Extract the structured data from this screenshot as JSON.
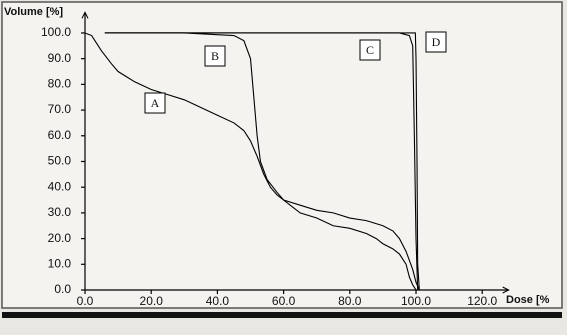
{
  "chart_data": {
    "type": "line",
    "y_label": "Volume [%]",
    "x_label": "Dose [%",
    "xlim": [
      0,
      128
    ],
    "ylim": [
      0,
      108
    ],
    "xticks": [
      {
        "value": 0,
        "label": "0.0"
      },
      {
        "value": 20,
        "label": "20.0"
      },
      {
        "value": 40,
        "label": "40.0"
      },
      {
        "value": 60,
        "label": "60.0"
      },
      {
        "value": 80,
        "label": "80.0"
      },
      {
        "value": 100,
        "label": "100.0"
      },
      {
        "value": 120,
        "label": "120.0"
      }
    ],
    "yticks": [
      {
        "value": 0,
        "label": "0.0"
      },
      {
        "value": 10,
        "label": "10.0"
      },
      {
        "value": 20,
        "label": "20.0"
      },
      {
        "value": 30,
        "label": "30.0"
      },
      {
        "value": 40,
        "label": "40.0"
      },
      {
        "value": 50,
        "label": "50.0"
      },
      {
        "value": 60,
        "label": "60.0"
      },
      {
        "value": 70,
        "label": "70.0"
      },
      {
        "value": 80,
        "label": "80.0"
      },
      {
        "value": 90,
        "label": "90.0"
      },
      {
        "value": 100,
        "label": "100.0"
      }
    ],
    "grid": false,
    "series": [
      {
        "name": "A",
        "color": "#000000",
        "x": [
          0,
          2,
          5,
          8,
          10,
          15,
          20,
          25,
          30,
          35,
          40,
          45,
          48,
          50,
          52,
          54,
          56,
          58,
          60,
          65,
          70,
          75,
          80,
          85,
          90,
          93,
          95,
          97,
          99,
          100,
          101
        ],
        "values": [
          100,
          99,
          93,
          88,
          85,
          81,
          78,
          76,
          74,
          71,
          68,
          65,
          62,
          58,
          52,
          45,
          40,
          37,
          35,
          33,
          31,
          30,
          28,
          27,
          25,
          23,
          20,
          15,
          8,
          3,
          0
        ]
      },
      {
        "name": "B",
        "color": "#000000",
        "x": [
          6,
          30,
          45,
          48,
          50,
          51,
          52,
          53,
          55,
          58,
          60,
          62,
          65,
          70,
          75,
          80,
          85,
          88,
          90,
          93,
          95,
          97,
          98,
          99,
          100
        ],
        "values": [
          100,
          100,
          99,
          97,
          90,
          75,
          60,
          50,
          43,
          38,
          35,
          33,
          30,
          28,
          25,
          24,
          22,
          20,
          18,
          16,
          14,
          10,
          5,
          2,
          0
        ]
      },
      {
        "name": "C",
        "color": "#000000",
        "x": [
          6,
          95,
          98,
          99,
          99.5,
          100,
          100.5
        ],
        "values": [
          100,
          100,
          99,
          95,
          60,
          20,
          0
        ]
      },
      {
        "name": "D",
        "color": "#000000",
        "x": [
          6,
          99.8,
          100,
          100.3,
          100.5,
          101
        ],
        "values": [
          100,
          100,
          90,
          50,
          10,
          0
        ]
      }
    ]
  }
}
